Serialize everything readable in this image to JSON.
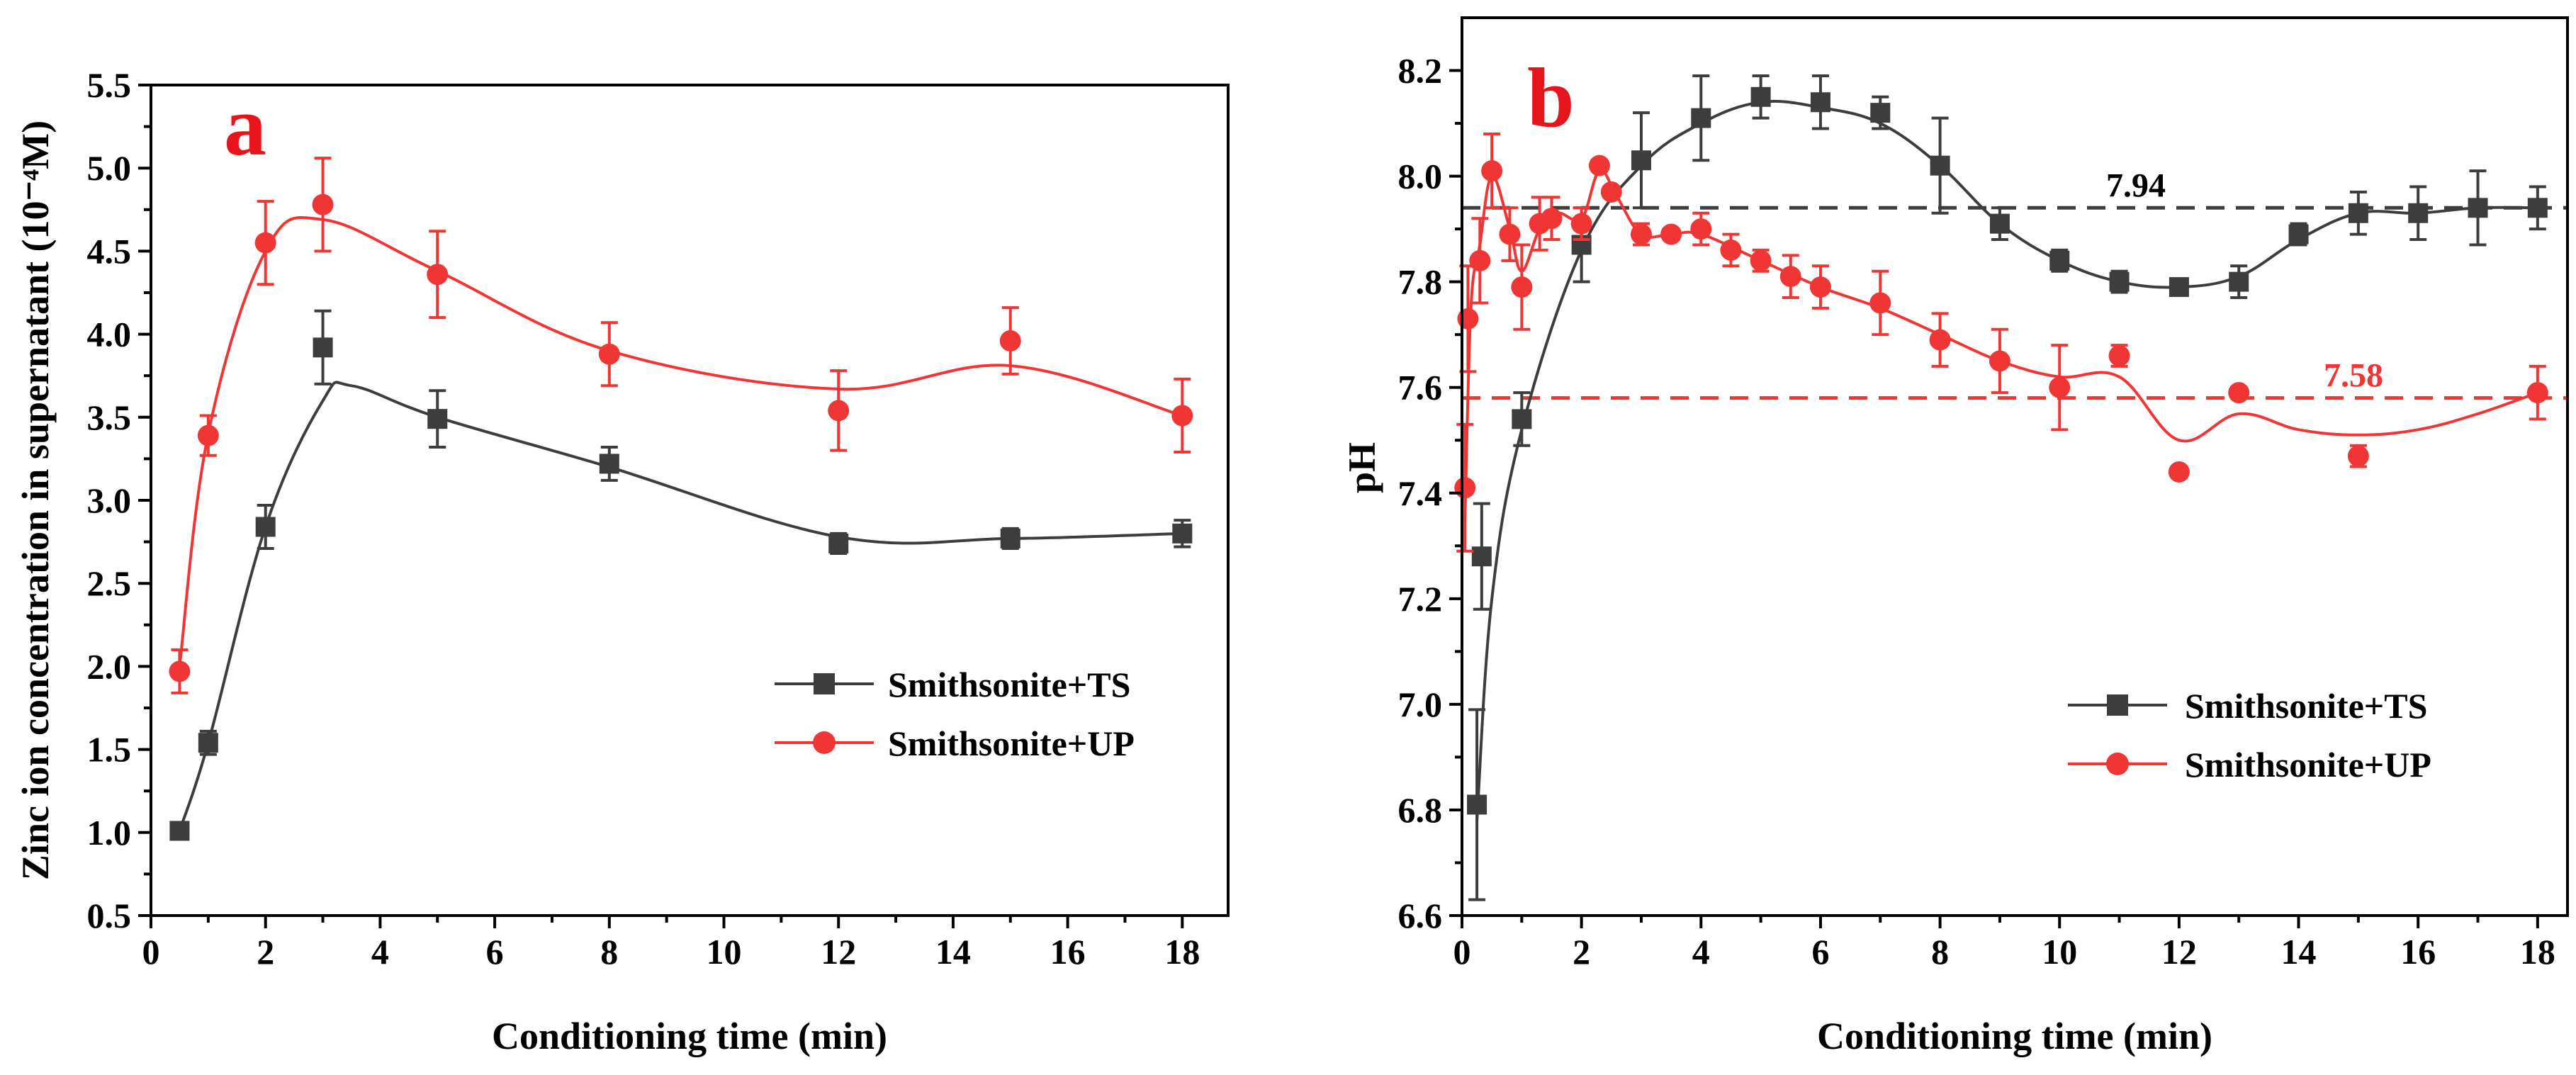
{
  "colors": {
    "ts": "#3d3d3d",
    "up": "#f03535",
    "letter": "#e8141c",
    "axis": "#000000"
  },
  "chart_data": [
    {
      "type": "line",
      "panel_label": "a",
      "xlabel": "Conditioning time (min)",
      "ylabel": "Zinc ion concentration in supernatant (10⁻⁴M)",
      "xlim": [
        0,
        18.8
      ],
      "ylim": [
        0.5,
        5.5
      ],
      "xticks": [
        0,
        2,
        4,
        6,
        8,
        10,
        12,
        14,
        16,
        18
      ],
      "yticks": [
        0.5,
        1.0,
        1.5,
        2.0,
        2.5,
        3.0,
        3.5,
        4.0,
        4.5,
        5.0,
        5.5
      ],
      "xtick_labels": [
        "0",
        "2",
        "4",
        "6",
        "8",
        "10",
        "12",
        "14",
        "16",
        "18"
      ],
      "ytick_labels": [
        "0.5",
        "1.0",
        "1.5",
        "2.0",
        "2.5",
        "3.0",
        "3.5",
        "4.0",
        "4.5",
        "5.0",
        "5.5"
      ],
      "legend_position": "lower-right",
      "series": [
        {
          "name": "Smithsonite+TS",
          "marker": "square",
          "color_key": "ts",
          "points": [
            {
              "x": 0.5,
              "y": 1.01,
              "err": 0.04
            },
            {
              "x": 1,
              "y": 1.54,
              "err": 0.07
            },
            {
              "x": 2,
              "y": 2.84,
              "err": 0.13
            },
            {
              "x": 3,
              "y": 3.92,
              "err": 0.22
            },
            {
              "x": 5,
              "y": 3.49,
              "err": 0.17
            },
            {
              "x": 8,
              "y": 3.22,
              "err": 0.1
            },
            {
              "x": 12,
              "y": 2.74,
              "err": 0.06
            },
            {
              "x": 15,
              "y": 2.77,
              "err": 0.06
            },
            {
              "x": 18,
              "y": 2.8,
              "err": 0.08
            }
          ],
          "fit": [
            [
              0.5,
              1.01
            ],
            [
              1,
              1.54
            ],
            [
              2,
              2.84
            ],
            [
              3,
              3.6
            ],
            [
              3.5,
              3.69
            ],
            [
              5,
              3.5
            ],
            [
              8,
              3.2
            ],
            [
              12,
              2.78
            ],
            [
              15,
              2.77
            ],
            [
              18,
              2.8
            ]
          ]
        },
        {
          "name": "Smithsonite+UP",
          "marker": "circle",
          "color_key": "up",
          "points": [
            {
              "x": 0.5,
              "y": 1.97,
              "err": 0.13
            },
            {
              "x": 1,
              "y": 3.39,
              "err": 0.12
            },
            {
              "x": 2,
              "y": 4.55,
              "err": 0.25
            },
            {
              "x": 3,
              "y": 4.78,
              "err": 0.28
            },
            {
              "x": 5,
              "y": 4.36,
              "err": 0.26
            },
            {
              "x": 8,
              "y": 3.88,
              "err": 0.19
            },
            {
              "x": 12,
              "y": 3.54,
              "err": 0.24
            },
            {
              "x": 15,
              "y": 3.96,
              "err": 0.2
            },
            {
              "x": 18,
              "y": 3.51,
              "err": 0.22
            }
          ],
          "fit": [
            [
              0.5,
              2.0
            ],
            [
              1,
              3.4
            ],
            [
              2,
              4.5
            ],
            [
              3,
              4.69
            ],
            [
              5,
              4.38
            ],
            [
              8,
              3.9
            ],
            [
              12,
              3.67
            ],
            [
              15,
              3.81
            ],
            [
              18,
              3.51
            ]
          ]
        }
      ]
    },
    {
      "type": "line",
      "panel_label": "b",
      "xlabel": "Conditioning time (min)",
      "ylabel": "pH",
      "xlim": [
        0,
        18.5
      ],
      "ylim": [
        6.6,
        8.3
      ],
      "xticks": [
        0,
        2,
        4,
        6,
        8,
        10,
        12,
        14,
        16,
        18
      ],
      "yticks": [
        6.6,
        6.8,
        7.0,
        7.2,
        7.4,
        7.6,
        7.8,
        8.0,
        8.2
      ],
      "xtick_labels": [
        "0",
        "2",
        "4",
        "6",
        "8",
        "10",
        "12",
        "14",
        "16",
        "18"
      ],
      "ytick_labels": [
        "6.6",
        "6.8",
        "7.0",
        "7.2",
        "7.4",
        "7.6",
        "7.8",
        "8.0",
        "8.2"
      ],
      "legend_position": "lower-right",
      "reference_lines": [
        {
          "y": 7.94,
          "label": "7.94",
          "color_key": "ts"
        },
        {
          "y": 7.58,
          "label": "7.58",
          "color_key": "up"
        }
      ],
      "series": [
        {
          "name": "Smithsonite+TS",
          "marker": "square",
          "color_key": "ts",
          "points": [
            {
              "x": 0.25,
              "y": 6.81,
              "err": 0.18
            },
            {
              "x": 0.33,
              "y": 7.28,
              "err": 0.1
            },
            {
              "x": 1,
              "y": 7.54,
              "err": 0.05
            },
            {
              "x": 2,
              "y": 7.87,
              "err": 0.07
            },
            {
              "x": 3,
              "y": 8.03,
              "err": 0.09
            },
            {
              "x": 4,
              "y": 8.11,
              "err": 0.08
            },
            {
              "x": 5,
              "y": 8.15,
              "err": 0.04
            },
            {
              "x": 6,
              "y": 8.14,
              "err": 0.05
            },
            {
              "x": 7,
              "y": 8.12,
              "err": 0.03
            },
            {
              "x": 8,
              "y": 8.02,
              "err": 0.09
            },
            {
              "x": 9,
              "y": 7.91,
              "err": 0.03
            },
            {
              "x": 10,
              "y": 7.84,
              "err": 0.02
            },
            {
              "x": 11,
              "y": 7.8,
              "err": 0.02
            },
            {
              "x": 12,
              "y": 7.79,
              "err": 0.01
            },
            {
              "x": 13,
              "y": 7.8,
              "err": 0.03
            },
            {
              "x": 14,
              "y": 7.89,
              "err": 0.02
            },
            {
              "x": 15,
              "y": 7.93,
              "err": 0.04
            },
            {
              "x": 16,
              "y": 7.93,
              "err": 0.05
            },
            {
              "x": 17,
              "y": 7.94,
              "err": 0.07
            },
            {
              "x": 18,
              "y": 7.94,
              "err": 0.04
            }
          ],
          "fit": [
            [
              0.25,
              6.78
            ],
            [
              0.5,
              7.2
            ],
            [
              1,
              7.52
            ],
            [
              2,
              7.86
            ],
            [
              3,
              8.02
            ],
            [
              4,
              8.1
            ],
            [
              5,
              8.14
            ],
            [
              6,
              8.13
            ],
            [
              7,
              8.1
            ],
            [
              8,
              8.02
            ],
            [
              9,
              7.91
            ],
            [
              10,
              7.84
            ],
            [
              11,
              7.8
            ],
            [
              12,
              7.79
            ],
            [
              13,
              7.81
            ],
            [
              14,
              7.88
            ],
            [
              15,
              7.93
            ],
            [
              16,
              7.93
            ],
            [
              17,
              7.94
            ],
            [
              18,
              7.94
            ]
          ]
        },
        {
          "name": "Smithsonite+UP",
          "marker": "circle",
          "color_key": "up",
          "points": [
            {
              "x": 0.05,
              "y": 7.41,
              "err": 0.12
            },
            {
              "x": 0.1,
              "y": 7.73,
              "err": 0.1
            },
            {
              "x": 0.3,
              "y": 7.84,
              "err": 0.08
            },
            {
              "x": 0.5,
              "y": 8.01,
              "err": 0.07
            },
            {
              "x": 0.8,
              "y": 7.89,
              "err": 0.05
            },
            {
              "x": 1,
              "y": 7.79,
              "err": 0.08
            },
            {
              "x": 1.3,
              "y": 7.91,
              "err": 0.05
            },
            {
              "x": 1.5,
              "y": 7.92,
              "err": 0.04
            },
            {
              "x": 2,
              "y": 7.91,
              "err": 0.03
            },
            {
              "x": 2.3,
              "y": 8.02,
              "err": 0.01
            },
            {
              "x": 2.5,
              "y": 7.97,
              "err": 0.01
            },
            {
              "x": 3,
              "y": 7.89,
              "err": 0.02
            },
            {
              "x": 3.5,
              "y": 7.89,
              "err": 0.01
            },
            {
              "x": 4,
              "y": 7.9,
              "err": 0.03
            },
            {
              "x": 4.5,
              "y": 7.86,
              "err": 0.03
            },
            {
              "x": 5,
              "y": 7.84,
              "err": 0.02
            },
            {
              "x": 5.5,
              "y": 7.81,
              "err": 0.04
            },
            {
              "x": 6,
              "y": 7.79,
              "err": 0.04
            },
            {
              "x": 7,
              "y": 7.76,
              "err": 0.06
            },
            {
              "x": 8,
              "y": 7.69,
              "err": 0.05
            },
            {
              "x": 9,
              "y": 7.65,
              "err": 0.06
            },
            {
              "x": 10,
              "y": 7.6,
              "err": 0.08
            },
            {
              "x": 11,
              "y": 7.66,
              "err": 0.02
            },
            {
              "x": 12,
              "y": 7.44,
              "err": 0.01
            },
            {
              "x": 13,
              "y": 7.59,
              "err": 0.01
            },
            {
              "x": 15,
              "y": 7.47,
              "err": 0.02
            },
            {
              "x": 18,
              "y": 7.59,
              "err": 0.05
            }
          ],
          "fit": [
            [
              0.05,
              7.35
            ],
            [
              0.15,
              7.75
            ],
            [
              0.3,
              7.87
            ],
            [
              0.5,
              8.0
            ],
            [
              0.8,
              7.9
            ],
            [
              1,
              7.82
            ],
            [
              1.3,
              7.9
            ],
            [
              1.6,
              7.93
            ],
            [
              2,
              7.92
            ],
            [
              2.3,
              8.01
            ],
            [
              2.6,
              7.96
            ],
            [
              3,
              7.89
            ],
            [
              3.5,
              7.89
            ],
            [
              4,
              7.89
            ],
            [
              5,
              7.84
            ],
            [
              6,
              7.79
            ],
            [
              7,
              7.75
            ],
            [
              8,
              7.7
            ],
            [
              9,
              7.65
            ],
            [
              10,
              7.62
            ],
            [
              11,
              7.62
            ],
            [
              12,
              7.5
            ],
            [
              13,
              7.55
            ],
            [
              14,
              7.52
            ],
            [
              15,
              7.51
            ],
            [
              16,
              7.52
            ],
            [
              17,
              7.55
            ],
            [
              18,
              7.59
            ]
          ]
        }
      ]
    }
  ]
}
